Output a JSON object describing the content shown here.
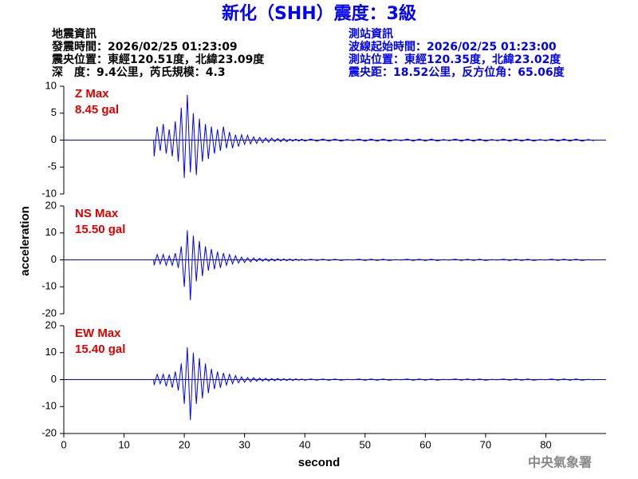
{
  "chart_data": {
    "type": "line",
    "title": "新化（SHH）震度：3級",
    "info_left": [
      "地震資訊",
      "發震時間：2026/02/25 01:23:09",
      "震央位置：東經120.51度，北緯23.09度",
      "深　度：9.4公里，芮氏規模：4.3"
    ],
    "info_right": [
      "測站資訊",
      "波線起始時間：2026/02/25 01:23:00",
      "測站位置：東經120.35度，北緯23.02度",
      "震央距：18.52公里，反方位角：65.06度"
    ],
    "x_label": "second",
    "y_label": "acceleration",
    "footer": "中央氣象署",
    "xlim": [
      0,
      90
    ],
    "xticks": [
      0,
      10,
      20,
      30,
      40,
      50,
      60,
      70,
      80
    ],
    "x": [
      0,
      14.9,
      15,
      15.5,
      16,
      16.5,
      17,
      17.5,
      18,
      18.5,
      19,
      19.5,
      20,
      20.5,
      21,
      21.5,
      22,
      22.5,
      23,
      23.5,
      24,
      24.5,
      25,
      25.5,
      26,
      26.5,
      27,
      27.5,
      28,
      28.5,
      29,
      29.5,
      30,
      30.5,
      31,
      31.5,
      32,
      32.5,
      33,
      33.5,
      34,
      34.5,
      35,
      35.5,
      36,
      36.5,
      37,
      37.5,
      38,
      38.5,
      39,
      39.5,
      40,
      41,
      42,
      43,
      44,
      45,
      46,
      47,
      48,
      49,
      50,
      51,
      52,
      53,
      54,
      55,
      56,
      57,
      58,
      59,
      60,
      61,
      62,
      63,
      64,
      65,
      66,
      67,
      68,
      69,
      70,
      71,
      72,
      73,
      74,
      75,
      76,
      77,
      78,
      79,
      80,
      81,
      82,
      83,
      84,
      85,
      86,
      87,
      88
    ],
    "series": [
      {
        "name": "Z Max",
        "peak_label": "8.45 gal",
        "color": "#0000ff",
        "ylim": [
          -10,
          10
        ],
        "yticks": [
          -10,
          -5,
          0,
          5,
          10
        ],
        "values": [
          0,
          0,
          -3,
          2.5,
          -2,
          3,
          -2.5,
          2,
          -3,
          3.5,
          -4,
          6,
          -7,
          8.4,
          -6,
          5,
          -6.5,
          4,
          -4,
          3,
          -3.5,
          2.5,
          -2.5,
          2,
          -2,
          2.5,
          -1.5,
          1.5,
          -1.5,
          1,
          -1.2,
          1,
          -0.8,
          0.9,
          -0.7,
          0.6,
          -0.6,
          0.5,
          -0.5,
          0.4,
          -0.4,
          0.4,
          -0.3,
          0.3,
          -0.3,
          0.3,
          -0.3,
          0.2,
          -0.2,
          0.2,
          -0.2,
          0.2,
          -0.2,
          0.2,
          -0.2,
          0.2,
          -0.2,
          0.2,
          -0.2,
          0.1,
          -0.1,
          0.2,
          -0.2,
          0.2,
          -0.2,
          0.2,
          -0.2,
          0.1,
          -0.1,
          0.2,
          -0.2,
          0.2,
          -0.2,
          0.2,
          -0.2,
          0.1,
          -0.1,
          0.2,
          -0.2,
          0.2,
          -0.2,
          0.2,
          -0.2,
          0.1,
          -0.1,
          0.2,
          -0.2,
          0.2,
          -0.2,
          0.2,
          -0.2,
          0.1,
          -0.1,
          0.2,
          -0.2,
          0.2,
          -0.2,
          0.2,
          -0.2,
          0.1,
          -0.1
        ]
      },
      {
        "name": "NS Max",
        "peak_label": "15.50 gal",
        "color": "#0000ff",
        "ylim": [
          -20,
          20
        ],
        "yticks": [
          -20,
          -10,
          0,
          10,
          20
        ],
        "values": [
          0,
          0,
          -2,
          2,
          -1.5,
          2,
          -2,
          1.5,
          -2,
          2.5,
          -3,
          5,
          -10,
          11,
          -15,
          9,
          -8,
          7,
          -6,
          5,
          -4,
          4,
          -3.5,
          3,
          -3,
          2.5,
          -2,
          2,
          -1.5,
          1.5,
          -1.2,
          1,
          -1,
          0.8,
          -0.8,
          0.7,
          -0.6,
          0.6,
          -0.5,
          0.5,
          -0.5,
          0.4,
          -0.4,
          0.4,
          -0.3,
          0.3,
          -0.3,
          0.3,
          -0.3,
          0.3,
          -0.2,
          0.2,
          -0.2,
          0.2,
          -0.2,
          0.2,
          -0.2,
          0.2,
          -0.2,
          0.1,
          -0.1,
          0.2,
          -0.2,
          0.2,
          -0.2,
          0.2,
          -0.2,
          0.1,
          -0.1,
          0.2,
          -0.2,
          0.2,
          -0.2,
          0.2,
          -0.2,
          0.1,
          -0.1,
          0.2,
          -0.2,
          0.2,
          -0.2,
          0.2,
          -0.2,
          0.1,
          -0.1,
          0.2,
          -0.2,
          0.2,
          -0.2,
          0.2,
          -0.2,
          0.1,
          -0.1,
          0.2,
          -0.2,
          0.2,
          -0.2,
          0.2,
          -0.2,
          0.1,
          -0.1
        ]
      },
      {
        "name": "EW Max",
        "peak_label": "15.40 gal",
        "color": "#0000ff",
        "ylim": [
          -20,
          20
        ],
        "yticks": [
          -20,
          -10,
          0,
          10,
          20
        ],
        "values": [
          0,
          0,
          -2,
          2,
          -1.5,
          2,
          -2.5,
          2,
          -3,
          3,
          -4,
          6,
          -9,
          12,
          -15,
          10,
          -9,
          8,
          -7,
          6,
          -5,
          4,
          -3.5,
          3,
          -3,
          2.5,
          -2,
          2,
          -1.5,
          1.5,
          -1.2,
          1,
          -1,
          0.8,
          -0.8,
          0.7,
          -0.6,
          0.6,
          -0.5,
          0.5,
          -0.5,
          0.4,
          -0.4,
          0.4,
          -0.3,
          0.3,
          -0.3,
          0.3,
          -0.3,
          0.3,
          -0.2,
          0.2,
          -0.2,
          0.2,
          -0.2,
          0.2,
          -0.2,
          0.2,
          -0.2,
          0.1,
          -0.1,
          0.2,
          -0.2,
          0.2,
          -0.2,
          0.2,
          -0.2,
          0.1,
          -0.1,
          0.2,
          -0.2,
          0.2,
          -0.2,
          0.2,
          -0.2,
          0.1,
          -0.1,
          0.2,
          -0.2,
          0.2,
          -0.2,
          0.2,
          -0.2,
          0.1,
          -0.1,
          0.2,
          -0.2,
          0.2,
          -0.2,
          0.2,
          -0.2,
          0.1,
          -0.1,
          0.2,
          -0.2,
          0.2,
          -0.2,
          0.2,
          -0.2,
          0.1,
          -0.1
        ]
      }
    ]
  }
}
